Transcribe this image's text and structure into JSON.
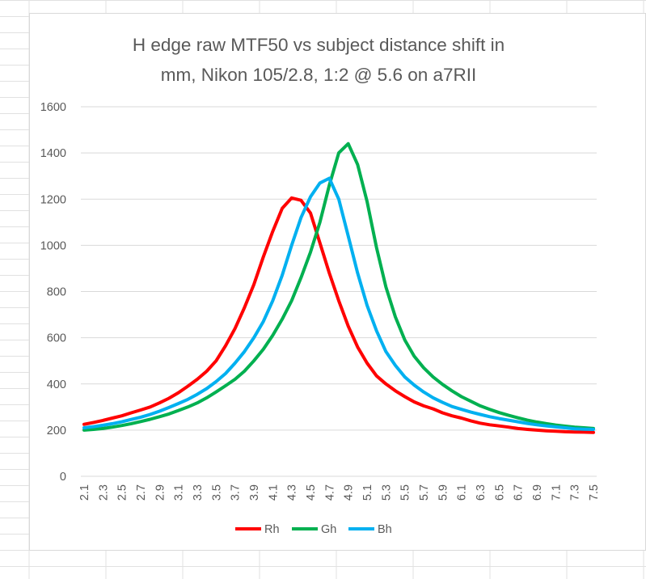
{
  "chart_data": {
    "type": "line",
    "title_lines": [
      "H edge raw MTF50 vs subject distance shift in",
      "mm, Nikon 105/2.8, 1:2 @ 5.6 on a7RII"
    ],
    "xlabel": "",
    "ylabel": "",
    "ylim": [
      0,
      1600
    ],
    "y_ticks": [
      0,
      200,
      400,
      600,
      800,
      1000,
      1200,
      1400,
      1600
    ],
    "x_tick_labels": [
      "2.1",
      "2.3",
      "2.5",
      "2.7",
      "2.9",
      "3.1",
      "3.3",
      "3.5",
      "3.7",
      "3.9",
      "4.1",
      "4.3",
      "4.5",
      "4.7",
      "4.9",
      "5.1",
      "5.3",
      "5.5",
      "5.7",
      "5.9",
      "6.1",
      "6.3",
      "6.5",
      "6.7",
      "6.9",
      "7.1",
      "7.3",
      "7.5"
    ],
    "x": [
      2.1,
      2.2,
      2.3,
      2.4,
      2.5,
      2.6,
      2.7,
      2.8,
      2.9,
      3.0,
      3.1,
      3.2,
      3.3,
      3.4,
      3.5,
      3.6,
      3.7,
      3.8,
      3.9,
      4.0,
      4.1,
      4.2,
      4.3,
      4.4,
      4.5,
      4.6,
      4.7,
      4.8,
      4.9,
      5.0,
      5.1,
      5.2,
      5.3,
      5.4,
      5.5,
      5.6,
      5.7,
      5.8,
      5.9,
      6.0,
      6.1,
      6.2,
      6.3,
      6.4,
      6.5,
      6.6,
      6.7,
      6.8,
      6.9,
      7.0,
      7.1,
      7.2,
      7.3,
      7.4,
      7.5
    ],
    "grid": true,
    "legend_position": "bottom",
    "series": [
      {
        "name": "Rh",
        "color": "#ff0000",
        "values": [
          225,
          233,
          242,
          252,
          262,
          275,
          287,
          300,
          318,
          338,
          362,
          390,
          420,
          455,
          500,
          565,
          640,
          730,
          830,
          950,
          1060,
          1160,
          1205,
          1195,
          1140,
          1010,
          880,
          760,
          650,
          560,
          490,
          435,
          400,
          370,
          345,
          322,
          305,
          292,
          275,
          262,
          252,
          240,
          230,
          223,
          218,
          213,
          207,
          203,
          200,
          197,
          195,
          193,
          192,
          191,
          190
        ]
      },
      {
        "name": "Gh",
        "color": "#00b050",
        "values": [
          200,
          203,
          207,
          213,
          220,
          228,
          237,
          247,
          258,
          270,
          285,
          300,
          318,
          340,
          365,
          392,
          420,
          455,
          500,
          550,
          610,
          680,
          760,
          860,
          970,
          1100,
          1260,
          1400,
          1440,
          1350,
          1190,
          990,
          820,
          690,
          590,
          520,
          470,
          430,
          398,
          370,
          345,
          325,
          305,
          290,
          276,
          264,
          253,
          243,
          235,
          228,
          222,
          217,
          213,
          210,
          207
        ]
      },
      {
        "name": "Bh",
        "color": "#00b0f0",
        "values": [
          210,
          215,
          221,
          228,
          236,
          246,
          256,
          268,
          282,
          298,
          315,
          333,
          355,
          380,
          410,
          445,
          490,
          540,
          600,
          670,
          760,
          870,
          1000,
          1120,
          1210,
          1270,
          1290,
          1200,
          1040,
          880,
          740,
          630,
          540,
          480,
          430,
          395,
          365,
          340,
          320,
          302,
          290,
          278,
          268,
          258,
          250,
          243,
          236,
          229,
          223,
          218,
          214,
          210,
          206,
          204,
          203
        ]
      }
    ]
  }
}
